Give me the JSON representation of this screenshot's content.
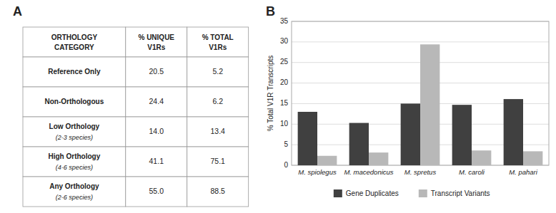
{
  "chart_data": [
    {
      "type": "table",
      "title": "A",
      "columns": [
        "ORTHOLOGY\nCATEGORY",
        "% UNIQUE\nV1Rs",
        "% TOTAL\nV1Rs"
      ],
      "rows": [
        {
          "label": "Reference Only",
          "values": [
            "20.5",
            "5.2"
          ]
        },
        {
          "label": "Non-Orthologous",
          "values": [
            "24.4",
            "6.2"
          ]
        },
        {
          "label": "Low Orthology",
          "sub": "(2-3 species)",
          "values": [
            "14.0",
            "13.4"
          ]
        },
        {
          "label": "High Orthology",
          "sub": "(4-6 species)",
          "values": [
            "41.1",
            "75.1"
          ]
        },
        {
          "label": "Any Orthology",
          "sub": "(2-6 species)",
          "values": [
            "55.0",
            "88.5"
          ]
        }
      ]
    },
    {
      "type": "bar",
      "title": "B",
      "categories": [
        "M. spiolegus",
        "M. macedonicus",
        "M. spretus",
        "M. caroli",
        "M. pahari"
      ],
      "series": [
        {
          "name": "Gene Duplicates",
          "color": "#404040",
          "values": [
            13.0,
            10.3,
            15.0,
            14.7,
            16.1
          ]
        },
        {
          "name": "Transcript Variants",
          "color": "#b8b8b8",
          "values": [
            2.3,
            3.1,
            29.4,
            3.6,
            3.4
          ]
        }
      ],
      "ylabel": "% Total V1R Transcripts",
      "ylim": [
        0,
        35
      ],
      "yticks": [
        0,
        5,
        10,
        15,
        20,
        25,
        30,
        35
      ],
      "grid": true,
      "legend": "bottom"
    }
  ]
}
